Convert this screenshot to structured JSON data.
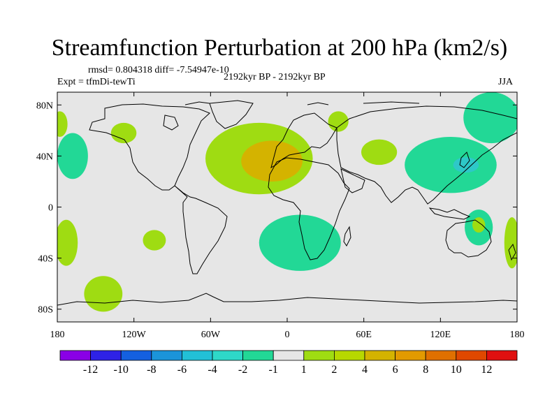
{
  "title": "Streamfunction Perturbation at 200 hPa (km2/s)",
  "stats": "rmsd= 0.804318 diff= -7.54947e-10",
  "experiment": "Expt = tfmDi-tewTi",
  "period": "2192kyr BP - 2192kyr BP",
  "season": "JJA",
  "map": {
    "lon_range": [
      -180,
      180
    ],
    "lat_range": [
      -90,
      90
    ],
    "lon_ticks": [
      {
        "value": -180,
        "label": "180"
      },
      {
        "value": -120,
        "label": "120W"
      },
      {
        "value": -60,
        "label": "60W"
      },
      {
        "value": 0,
        "label": "0"
      },
      {
        "value": 60,
        "label": "60E"
      },
      {
        "value": 120,
        "label": "120E"
      },
      {
        "value": 180,
        "label": "180"
      }
    ],
    "lat_ticks": [
      {
        "value": 80,
        "label": "80N"
      },
      {
        "value": 40,
        "label": "40N"
      },
      {
        "value": 0,
        "label": "0"
      },
      {
        "value": -40,
        "label": "40S"
      },
      {
        "value": -80,
        "label": "80S"
      }
    ],
    "background_color": "#e6e6e6",
    "anomalies": [
      {
        "name": "north-atlantic-africa-high",
        "lon": -22,
        "lat": 38,
        "rx": 42,
        "ry": 14,
        "level": 2,
        "color": "#9fdc12"
      },
      {
        "name": "north-atlantic-africa-core",
        "lon": -12,
        "lat": 36,
        "rx": 24,
        "ry": 8,
        "level": 4,
        "color": "#d4b300"
      },
      {
        "name": "south-atlantic-low",
        "lon": 10,
        "lat": -28,
        "rx": 32,
        "ry": 11,
        "level": -1,
        "color": "#22d896"
      },
      {
        "name": "west-pacific-low",
        "lon": 128,
        "lat": 33,
        "rx": 36,
        "ry": 11,
        "level": -1,
        "color": "#22d896"
      },
      {
        "name": "west-pacific-core",
        "lon": 140,
        "lat": 33,
        "rx": 10,
        "ry": 3,
        "level": -2,
        "color": "#2ec8c8"
      },
      {
        "name": "arctic-siberia-low",
        "lon": 160,
        "lat": 70,
        "rx": 22,
        "ry": 10,
        "level": -1,
        "color": "#22d896"
      },
      {
        "name": "central-asia-high",
        "lon": 72,
        "lat": 43,
        "rx": 14,
        "ry": 5,
        "level": 2,
        "color": "#9fdc12"
      },
      {
        "name": "scandinavia-high",
        "lon": 40,
        "lat": 67,
        "rx": 8,
        "ry": 4,
        "level": 2,
        "color": "#9fdc12"
      },
      {
        "name": "alaska-high",
        "lon": -128,
        "lat": 58,
        "rx": 10,
        "ry": 4,
        "level": 2,
        "color": "#9fdc12"
      },
      {
        "name": "north-pacific-east-low",
        "lon": -168,
        "lat": 40,
        "rx": 12,
        "ry": 9,
        "level": -1,
        "color": "#22d896"
      },
      {
        "name": "north-pacific-west-high",
        "lon": -178,
        "lat": 65,
        "rx": 6,
        "ry": 5,
        "level": 2,
        "color": "#9fdc12"
      },
      {
        "name": "south-pacific-high",
        "lon": -173,
        "lat": -28,
        "rx": 9,
        "ry": 9,
        "level": 2,
        "color": "#9fdc12"
      },
      {
        "name": "south-pacific-mid-high",
        "lon": -104,
        "lat": -26,
        "rx": 9,
        "ry": 4,
        "level": 2,
        "color": "#9fdc12"
      },
      {
        "name": "southern-ocean-high",
        "lon": -144,
        "lat": -68,
        "rx": 15,
        "ry": 7,
        "level": 2,
        "color": "#9fdc12"
      },
      {
        "name": "australia-low",
        "lon": 150,
        "lat": -16,
        "rx": 11,
        "ry": 7,
        "level": -1,
        "color": "#22d896"
      },
      {
        "name": "australia-core",
        "lon": 150,
        "lat": -14,
        "rx": 5,
        "ry": 3,
        "level": 2,
        "color": "#9fdc12"
      },
      {
        "name": "tasman-high",
        "lon": 176,
        "lat": -28,
        "rx": 6,
        "ry": 10,
        "level": 2,
        "color": "#9fdc12"
      }
    ]
  },
  "colorbar": {
    "colors": [
      "#8a00e6",
      "#2e22e6",
      "#1460e0",
      "#1b94d9",
      "#22c0d6",
      "#2ed8c8",
      "#22d896",
      "#e6e6e6",
      "#9fdc12",
      "#b7d800",
      "#d4b300",
      "#e29a00",
      "#e07000",
      "#e04800",
      "#e01010"
    ],
    "labels": [
      "-12",
      "-10",
      "-8",
      "-6",
      "-4",
      "-2",
      "-1",
      "1",
      "2",
      "4",
      "6",
      "8",
      "10",
      "12"
    ]
  }
}
